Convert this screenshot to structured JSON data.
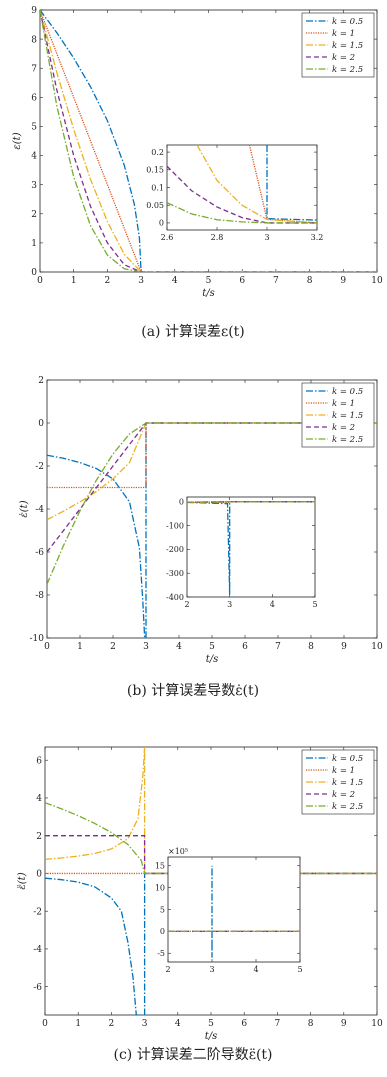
{
  "figure": {
    "panels": [
      {
        "caption": "(a)   计算误差ε(t)"
      },
      {
        "caption": "(b)   计算误差导数ε̇(t)"
      },
      {
        "caption": "(c)   计算误差二阶导数ε̈(t)"
      }
    ]
  },
  "colors": {
    "k0_5": "#0072BD",
    "k1": "#D95319",
    "k1_5": "#EDB120",
    "k2": "#7E2F8E",
    "k2_5": "#77AC30"
  },
  "chart_data": [
    {
      "type": "line",
      "xlabel": "t/s",
      "ylabel": "ε(t)",
      "xlim": [
        0,
        10
      ],
      "ylim": [
        0,
        9
      ],
      "xticks": [
        "0",
        "1",
        "2",
        "3",
        "4",
        "5",
        "6",
        "7",
        "8",
        "9",
        "10"
      ],
      "yticks": [
        "0",
        "1",
        "2",
        "3",
        "4",
        "5",
        "6",
        "7",
        "8",
        "9"
      ],
      "legend": "top-right",
      "grid": false,
      "series": [
        {
          "name": "k = 0.5",
          "x": [
            0,
            0.5,
            1,
            1.5,
            2,
            2.5,
            2.8,
            2.95,
            3,
            10
          ],
          "y": [
            9,
            8.22,
            7.35,
            6.36,
            5.2,
            3.67,
            2.32,
            1.17,
            0,
            0
          ]
        },
        {
          "name": "k = 1",
          "x": [
            0,
            0.5,
            1,
            1.5,
            2,
            2.5,
            3,
            10
          ],
          "y": [
            9,
            7.5,
            6,
            4.5,
            3,
            1.5,
            0,
            0
          ]
        },
        {
          "name": "k = 1.5",
          "x": [
            0,
            0.5,
            1,
            1.5,
            2,
            2.5,
            3,
            10
          ],
          "y": [
            9,
            6.85,
            4.9,
            3.18,
            1.73,
            0.61,
            0,
            0
          ]
        },
        {
          "name": "k = 2",
          "x": [
            0,
            0.5,
            1,
            1.5,
            2,
            2.5,
            3,
            10
          ],
          "y": [
            9,
            6.25,
            4,
            2.25,
            1,
            0.25,
            0,
            0
          ]
        },
        {
          "name": "k = 2.5",
          "x": [
            0,
            0.5,
            1,
            1.5,
            2,
            2.5,
            3,
            10
          ],
          "y": [
            9,
            5.7,
            3.27,
            1.59,
            0.58,
            0.11,
            0,
            0
          ]
        }
      ],
      "inset": {
        "xlim": [
          2.6,
          3.2
        ],
        "ylim": [
          -0.02,
          0.22
        ],
        "xticks": [
          "2.6",
          "2.8",
          "3",
          "3.2"
        ],
        "yticks": [
          "0",
          "0.05",
          "0.1",
          "0.15",
          "0.2"
        ],
        "series": [
          {
            "name": "k = 0.5",
            "x": [
              3,
              3,
              3.2
            ],
            "y": [
              0.22,
              0.012,
              0.008
            ]
          },
          {
            "name": "k = 1",
            "x": [
              2.93,
              3,
              3.2
            ],
            "y": [
              0.22,
              0.01,
              0
            ]
          },
          {
            "name": "k = 1.5",
            "x": [
              2.72,
              2.8,
              2.9,
              3,
              3.2
            ],
            "y": [
              0.22,
              0.12,
              0.05,
              0.01,
              0
            ]
          },
          {
            "name": "k = 2",
            "x": [
              2.6,
              2.7,
              2.8,
              2.9,
              3,
              3.2
            ],
            "y": [
              0.16,
              0.09,
              0.045,
              0.015,
              0,
              0
            ]
          },
          {
            "name": "k = 2.5",
            "x": [
              2.6,
              2.7,
              2.8,
              2.9,
              3,
              3.2
            ],
            "y": [
              0.057,
              0.025,
              0.009,
              0.003,
              0,
              0
            ]
          }
        ]
      }
    },
    {
      "type": "line",
      "xlabel": "t/s",
      "ylabel": "ε̇(t)",
      "xlim": [
        0,
        10
      ],
      "ylim": [
        -10,
        2
      ],
      "xticks": [
        "0",
        "1",
        "2",
        "3",
        "4",
        "5",
        "6",
        "7",
        "8",
        "9",
        "10"
      ],
      "yticks": [
        "-10",
        "-8",
        "-6",
        "-4",
        "-2",
        "0",
        "2"
      ],
      "legend": "top-right",
      "grid": false,
      "series": [
        {
          "name": "k = 0.5",
          "x": [
            0,
            0.5,
            1,
            1.5,
            2,
            2.5,
            2.8,
            2.9,
            2.96,
            3,
            3,
            10
          ],
          "y": [
            -1.5,
            -1.64,
            -1.84,
            -2.12,
            -2.6,
            -3.67,
            -5.81,
            -8.2,
            -10,
            -10,
            0,
            0
          ]
        },
        {
          "name": "k = 1",
          "x": [
            0,
            3,
            3,
            10
          ],
          "y": [
            -3,
            -3,
            0,
            0
          ]
        },
        {
          "name": "k = 1.5",
          "x": [
            0,
            0.5,
            1,
            1.5,
            2,
            2.5,
            3,
            10
          ],
          "y": [
            -4.5,
            -4.1,
            -3.67,
            -3.18,
            -2.6,
            -1.84,
            0,
            0
          ]
        },
        {
          "name": "k = 2",
          "x": [
            0,
            0.5,
            1,
            1.5,
            2,
            2.5,
            3,
            10
          ],
          "y": [
            -6,
            -5,
            -4,
            -3,
            -2,
            -1,
            0,
            0
          ]
        },
        {
          "name": "k = 2.5",
          "x": [
            0,
            0.5,
            1,
            1.5,
            2,
            2.5,
            3,
            10
          ],
          "y": [
            -7.5,
            -5.7,
            -4.08,
            -2.65,
            -1.44,
            -0.51,
            0,
            0
          ]
        }
      ],
      "inset": {
        "xlim": [
          2,
          5
        ],
        "ylim": [
          -400,
          20
        ],
        "xticks": [
          "2",
          "3",
          "4",
          "5"
        ],
        "yticks": [
          "-400",
          "-300",
          "-200",
          "-100",
          "0"
        ],
        "series": [
          {
            "name": "k = 0.5",
            "x": [
              2,
              2.95,
              3,
              3,
              3,
              5
            ],
            "y": [
              -2.6,
              -8,
              -390,
              -390,
              0,
              0
            ]
          },
          {
            "name": "k = 1",
            "x": [
              2,
              3,
              3,
              5
            ],
            "y": [
              -3,
              -3,
              0,
              0
            ]
          },
          {
            "name": "k = 1.5",
            "x": [
              2,
              3,
              5
            ],
            "y": [
              -2.6,
              0,
              0
            ]
          },
          {
            "name": "k = 2",
            "x": [
              2,
              3,
              5
            ],
            "y": [
              -2,
              0,
              0
            ]
          },
          {
            "name": "k = 2.5",
            "x": [
              2,
              3,
              5
            ],
            "y": [
              -1.4,
              0,
              0
            ]
          }
        ]
      }
    },
    {
      "type": "line",
      "xlabel": "t/s",
      "ylabel": "ε̈(t)",
      "xlim": [
        0,
        10
      ],
      "ylim": [
        -7.5,
        6.7
      ],
      "xticks": [
        "0",
        "1",
        "2",
        "3",
        "4",
        "5",
        "6",
        "7",
        "8",
        "9",
        "10"
      ],
      "yticks": [
        "-6",
        "-4",
        "-2",
        "0",
        "2",
        "4",
        "6"
      ],
      "legend": "top-right",
      "grid": false,
      "series": [
        {
          "name": "k = 0.5",
          "x": [
            0,
            0.5,
            1,
            1.5,
            2,
            2.3,
            2.5,
            2.65,
            2.75,
            3,
            3,
            10
          ],
          "y": [
            -0.25,
            -0.33,
            -0.46,
            -0.71,
            -1.3,
            -2,
            -3.67,
            -5.5,
            -7.5,
            -7.5,
            0,
            0
          ]
        },
        {
          "name": "k = 1",
          "x": [
            0,
            3,
            3,
            10
          ],
          "y": [
            0,
            0,
            0,
            0
          ]
        },
        {
          "name": "k = 1.5",
          "x": [
            0,
            0.5,
            1,
            1.5,
            2,
            2.5,
            2.8,
            2.95,
            3,
            3,
            10
          ],
          "y": [
            0.75,
            0.82,
            0.92,
            1.06,
            1.3,
            1.84,
            2.9,
            5.2,
            6.7,
            0,
            0
          ]
        },
        {
          "name": "k = 2",
          "x": [
            0,
            3,
            3,
            10
          ],
          "y": [
            2,
            2,
            0,
            0
          ]
        },
        {
          "name": "k = 2.5",
          "x": [
            0,
            0.5,
            1,
            1.5,
            2,
            2.5,
            2.9,
            3,
            10
          ],
          "y": [
            3.75,
            3.42,
            3.06,
            2.65,
            2.17,
            1.53,
            0.69,
            0,
            0
          ]
        }
      ],
      "inset": {
        "xlim": [
          2,
          5
        ],
        "ylim": [
          -7,
          17
        ],
        "exponent": "×10⁵",
        "xticks": [
          "2",
          "3",
          "4",
          "5"
        ],
        "yticks": [
          "-5",
          "0",
          "5",
          "10",
          "15"
        ],
        "series": [
          {
            "name": "k = 0.5",
            "x": [
              2,
              3,
              3,
              3,
              3,
              5
            ],
            "y": [
              0,
              0,
              15,
              -6,
              0,
              0
            ]
          },
          {
            "name": "k = 1",
            "x": [
              2,
              5
            ],
            "y": [
              0,
              0
            ]
          },
          {
            "name": "k = 1.5",
            "x": [
              2,
              3,
              5
            ],
            "y": [
              0,
              0,
              0
            ]
          },
          {
            "name": "k = 2",
            "x": [
              2,
              5
            ],
            "y": [
              0,
              0
            ]
          },
          {
            "name": "k = 2.5",
            "x": [
              2,
              5
            ],
            "y": [
              0,
              0
            ]
          }
        ]
      }
    }
  ]
}
